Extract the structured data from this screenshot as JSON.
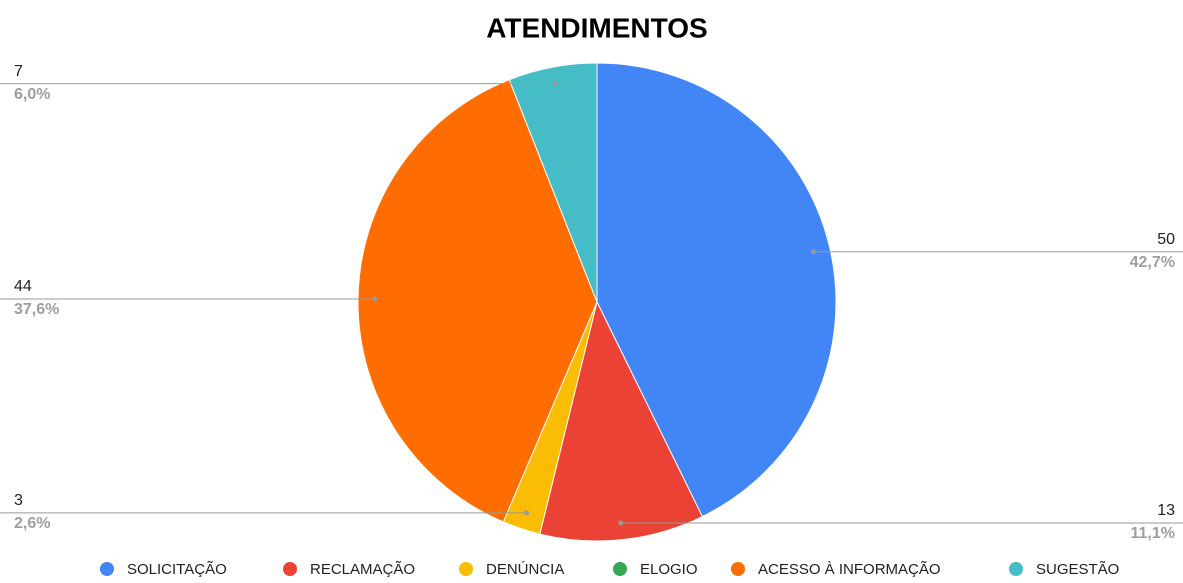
{
  "chart_data": {
    "type": "pie",
    "title": "ATENDIMENTOS",
    "categories": [
      "SOLICITAÇÃO",
      "RECLAMAÇÃO",
      "DENÚNCIA",
      "ELOGIO",
      "ACESSO À INFORMAÇÃO",
      "SUGESTÃO"
    ],
    "values": [
      50,
      13,
      3,
      0,
      44,
      7
    ],
    "percents": [
      42.7,
      11.1,
      2.6,
      null,
      37.6,
      6.0
    ],
    "percent_labels": [
      "42,7%",
      "11,1%",
      "2,6%",
      null,
      "37,6%",
      "6,0%"
    ],
    "colors": [
      "#4285f4",
      "#ea4335",
      "#fbbc04",
      "#34a853",
      "#ff6d01",
      "#46bdc6"
    ],
    "legend": "bottom"
  }
}
